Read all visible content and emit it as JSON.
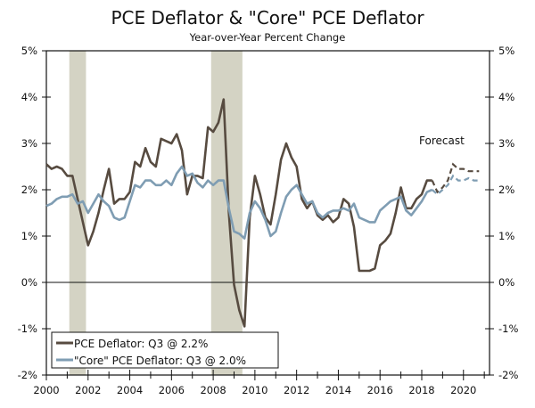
{
  "chart_data": {
    "type": "line",
    "title": "PCE Deflator & \"Core\" PCE Deflator",
    "subtitle": "Year-over-Year Percent Change",
    "xlabel": "",
    "ylabel": "",
    "x_start": 2000.0,
    "x_step": 0.25,
    "xlim": [
      2000,
      2021.25
    ],
    "ylim": [
      -2,
      5
    ],
    "x_ticks": [
      "2000",
      "2002",
      "2004",
      "2006",
      "2008",
      "2010",
      "2012",
      "2014",
      "2016",
      "2018",
      "2020"
    ],
    "x_tick_values": [
      2000,
      2002,
      2004,
      2006,
      2008,
      2010,
      2012,
      2014,
      2016,
      2018,
      2020
    ],
    "y_ticks_left": [
      "5%",
      "4%",
      "3%",
      "2%",
      "1%",
      "0%",
      "-1%",
      "-2%"
    ],
    "y_ticks_right": [
      "5%",
      "4%",
      "3%",
      "2%",
      "1%",
      "0%",
      "-1%",
      "-2%"
    ],
    "y_tick_values": [
      5,
      4,
      3,
      2,
      1,
      0,
      -1,
      -2
    ],
    "annotation": "Forecast",
    "recessions": [
      [
        2001.1,
        2001.9
      ],
      [
        2007.9,
        2009.4
      ]
    ],
    "colors": {
      "pce": "#574b40",
      "core": "#7f9db3",
      "recession": "#d4d3c4"
    },
    "series": [
      {
        "name": "PCE Deflator: Q3 @ 2.2%",
        "values": [
          2.55,
          2.45,
          2.5,
          2.45,
          2.3,
          2.3,
          1.8,
          1.3,
          0.8,
          1.1,
          1.5,
          2.0,
          2.45,
          1.7,
          1.8,
          1.8,
          1.95,
          2.6,
          2.5,
          2.9,
          2.6,
          2.5,
          3.1,
          3.05,
          3.0,
          3.2,
          2.85,
          1.9,
          2.3,
          2.3,
          2.25,
          3.35,
          3.25,
          3.45,
          3.95,
          1.5,
          -0.05,
          -0.6,
          -0.95,
          1.4,
          2.3,
          1.9,
          1.4,
          1.25,
          1.9,
          2.65,
          3.0,
          2.7,
          2.5,
          1.8,
          1.6,
          1.75,
          1.45,
          1.35,
          1.45,
          1.3,
          1.4,
          1.8,
          1.7,
          1.2,
          0.25,
          0.25,
          0.25,
          0.3,
          0.8,
          0.9,
          1.05,
          1.5,
          2.05,
          1.6,
          1.6,
          1.8,
          1.9,
          2.2,
          2.2
        ],
        "forecast": [
          2.2,
          1.95,
          2.05,
          2.2,
          2.55,
          2.45,
          2.45,
          2.4,
          2.4,
          2.4
        ]
      },
      {
        "name": "\"Core\" PCE Deflator: Q3 @ 2.0%",
        "values": [
          1.65,
          1.7,
          1.8,
          1.85,
          1.85,
          1.9,
          1.7,
          1.75,
          1.5,
          1.7,
          1.9,
          1.75,
          1.65,
          1.4,
          1.35,
          1.4,
          1.75,
          2.1,
          2.05,
          2.2,
          2.2,
          2.1,
          2.1,
          2.2,
          2.1,
          2.35,
          2.5,
          2.3,
          2.35,
          2.15,
          2.05,
          2.2,
          2.1,
          2.2,
          2.2,
          1.6,
          1.1,
          1.05,
          0.95,
          1.5,
          1.75,
          1.6,
          1.35,
          1.0,
          1.1,
          1.5,
          1.85,
          2.0,
          2.1,
          1.9,
          1.7,
          1.75,
          1.5,
          1.4,
          1.5,
          1.55,
          1.55,
          1.6,
          1.55,
          1.7,
          1.4,
          1.35,
          1.3,
          1.3,
          1.55,
          1.65,
          1.75,
          1.8,
          1.85,
          1.55,
          1.45,
          1.6,
          1.75,
          1.95,
          2.0
        ],
        "forecast": [
          2.0,
          1.9,
          2.0,
          2.1,
          2.3,
          2.2,
          2.2,
          2.25,
          2.2,
          2.2
        ]
      }
    ],
    "legend": "bottom-left"
  }
}
